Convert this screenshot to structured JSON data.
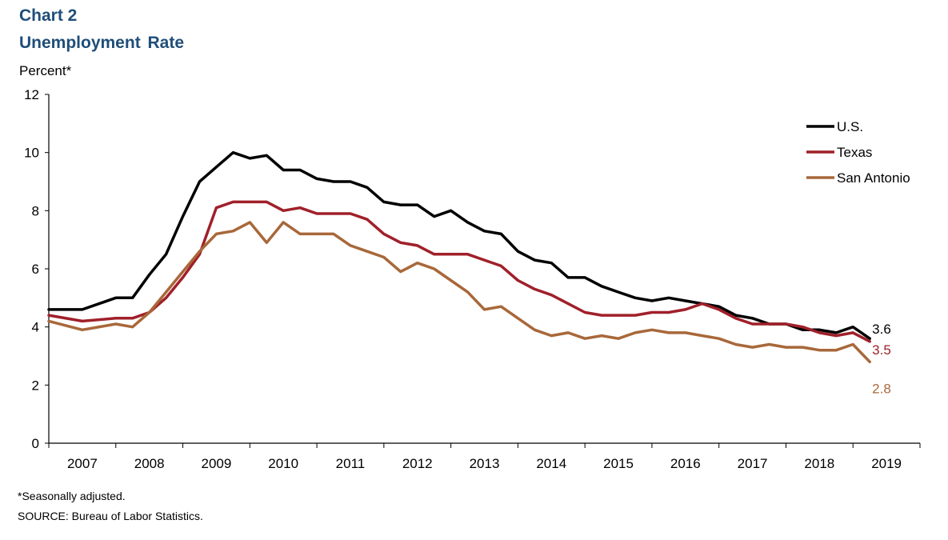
{
  "chart_label": "Chart 2",
  "title": "Unemployment Rate",
  "ylabel": "Percent*",
  "footnote": "*Seasonally adjusted.",
  "source": "SOURCE:  Bureau of Labor Statistics.",
  "colors": {
    "us": "#000000",
    "texas": "#a0202a",
    "san_antonio": "#a8683a"
  },
  "chart_data": {
    "type": "line",
    "title": "Unemployment Rate",
    "xlabel": "",
    "ylabel": "Percent*",
    "ylim": [
      0,
      12
    ],
    "yticks": [
      0,
      2,
      4,
      6,
      8,
      10,
      12
    ],
    "x_tick_labels": [
      "2007",
      "2008",
      "2009",
      "2010",
      "2011",
      "2012",
      "2013",
      "2014",
      "2015",
      "2016",
      "2017",
      "2018",
      "2019"
    ],
    "x_start": "2007-01",
    "x_end": "2019-12",
    "grid": false,
    "legend_position": "top-right",
    "series": [
      {
        "name": "U.S.",
        "end_label": "3.6",
        "x": [
          "2007-01",
          "2007-07",
          "2008-01",
          "2008-04",
          "2008-07",
          "2008-10",
          "2009-01",
          "2009-04",
          "2009-07",
          "2009-10",
          "2010-01",
          "2010-04",
          "2010-07",
          "2010-10",
          "2011-01",
          "2011-04",
          "2011-07",
          "2011-10",
          "2012-01",
          "2012-04",
          "2012-07",
          "2012-10",
          "2013-01",
          "2013-04",
          "2013-07",
          "2013-10",
          "2014-01",
          "2014-04",
          "2014-07",
          "2014-10",
          "2015-01",
          "2015-04",
          "2015-07",
          "2015-10",
          "2016-01",
          "2016-04",
          "2016-07",
          "2016-10",
          "2017-01",
          "2017-04",
          "2017-07",
          "2017-10",
          "2018-01",
          "2018-04",
          "2018-07",
          "2018-10",
          "2019-01",
          "2019-04"
        ],
        "y": [
          4.6,
          4.6,
          5.0,
          5.0,
          5.8,
          6.5,
          7.8,
          9.0,
          9.5,
          10.0,
          9.8,
          9.9,
          9.4,
          9.4,
          9.1,
          9.0,
          9.0,
          8.8,
          8.3,
          8.2,
          8.2,
          7.8,
          8.0,
          7.6,
          7.3,
          7.2,
          6.6,
          6.3,
          6.2,
          5.7,
          5.7,
          5.4,
          5.2,
          5.0,
          4.9,
          5.0,
          4.9,
          4.8,
          4.7,
          4.4,
          4.3,
          4.1,
          4.1,
          3.9,
          3.9,
          3.8,
          4.0,
          3.6
        ]
      },
      {
        "name": "Texas",
        "end_label": "3.5",
        "x": [
          "2007-01",
          "2007-07",
          "2008-01",
          "2008-04",
          "2008-07",
          "2008-10",
          "2009-01",
          "2009-04",
          "2009-07",
          "2009-10",
          "2010-01",
          "2010-04",
          "2010-07",
          "2010-10",
          "2011-01",
          "2011-04",
          "2011-07",
          "2011-10",
          "2012-01",
          "2012-04",
          "2012-07",
          "2012-10",
          "2013-01",
          "2013-04",
          "2013-07",
          "2013-10",
          "2014-01",
          "2014-04",
          "2014-07",
          "2014-10",
          "2015-01",
          "2015-04",
          "2015-07",
          "2015-10",
          "2016-01",
          "2016-04",
          "2016-07",
          "2016-10",
          "2017-01",
          "2017-04",
          "2017-07",
          "2017-10",
          "2018-01",
          "2018-04",
          "2018-07",
          "2018-10",
          "2019-01",
          "2019-04"
        ],
        "y": [
          4.4,
          4.2,
          4.3,
          4.3,
          4.5,
          5.0,
          5.7,
          6.5,
          8.1,
          8.3,
          8.3,
          8.3,
          8.0,
          8.1,
          7.9,
          7.9,
          7.9,
          7.7,
          7.2,
          6.9,
          6.8,
          6.5,
          6.5,
          6.5,
          6.3,
          6.1,
          5.6,
          5.3,
          5.1,
          4.8,
          4.5,
          4.4,
          4.4,
          4.4,
          4.5,
          4.5,
          4.6,
          4.8,
          4.6,
          4.3,
          4.1,
          4.1,
          4.1,
          4.0,
          3.8,
          3.7,
          3.8,
          3.5
        ]
      },
      {
        "name": "San Antonio",
        "end_label": "2.8",
        "x": [
          "2007-01",
          "2007-07",
          "2008-01",
          "2008-04",
          "2008-07",
          "2008-10",
          "2009-01",
          "2009-04",
          "2009-07",
          "2009-10",
          "2010-01",
          "2010-04",
          "2010-07",
          "2010-10",
          "2011-01",
          "2011-04",
          "2011-07",
          "2011-10",
          "2012-01",
          "2012-04",
          "2012-07",
          "2012-10",
          "2013-01",
          "2013-04",
          "2013-07",
          "2013-10",
          "2014-01",
          "2014-04",
          "2014-07",
          "2014-10",
          "2015-01",
          "2015-04",
          "2015-07",
          "2015-10",
          "2016-01",
          "2016-04",
          "2016-07",
          "2016-10",
          "2017-01",
          "2017-04",
          "2017-07",
          "2017-10",
          "2018-01",
          "2018-04",
          "2018-07",
          "2018-10",
          "2019-01",
          "2019-04"
        ],
        "y": [
          4.2,
          3.9,
          4.1,
          4.0,
          4.5,
          5.2,
          5.9,
          6.6,
          7.2,
          7.3,
          7.6,
          6.9,
          7.6,
          7.2,
          7.2,
          7.2,
          6.8,
          6.6,
          6.4,
          5.9,
          6.2,
          6.0,
          5.6,
          5.2,
          4.6,
          4.7,
          4.3,
          3.9,
          3.7,
          3.8,
          3.6,
          3.7,
          3.6,
          3.8,
          3.9,
          3.8,
          3.8,
          3.7,
          3.6,
          3.4,
          3.3,
          3.4,
          3.3,
          3.3,
          3.2,
          3.2,
          3.4,
          2.8
        ]
      }
    ]
  }
}
